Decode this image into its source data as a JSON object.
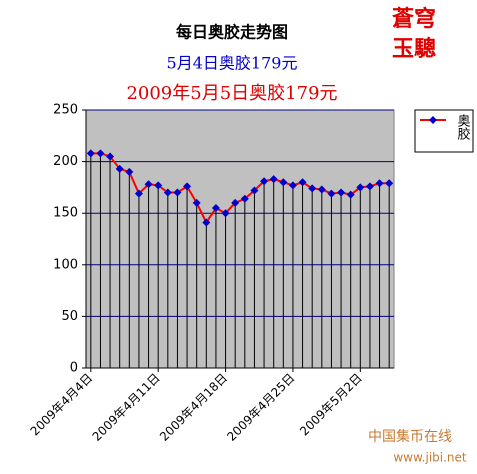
{
  "chart_data": {
    "type": "line",
    "title": "每日奥胶走势图",
    "subtitle": "5月4日奥胶179元",
    "subtitle2": "2009年5月5日奥胶179元",
    "categories": [
      "2009年4月4日",
      null,
      null,
      null,
      null,
      null,
      null,
      "2009年4月11日",
      null,
      null,
      null,
      null,
      null,
      null,
      "2009年4月18日",
      null,
      null,
      null,
      null,
      null,
      null,
      "2009年4月25日",
      null,
      null,
      null,
      null,
      null,
      null,
      "2009年5月2日",
      null,
      null,
      null
    ],
    "series": [
      {
        "name": "奥胶",
        "color": "#ff0000",
        "marker_color": "#0000cc",
        "values": [
          208,
          208,
          205,
          193,
          190,
          169,
          178,
          177,
          170,
          170,
          176,
          160,
          141,
          155,
          150,
          160,
          164,
          172,
          181,
          183,
          180,
          177,
          180,
          174,
          173,
          169,
          170,
          168,
          175,
          176,
          179,
          179
        ]
      }
    ],
    "ylim": [
      0,
      250
    ],
    "yticks": [
      0,
      50,
      100,
      150,
      200,
      250
    ],
    "grid": true,
    "plot_background": "#c0c0c0",
    "grid_color": "#000080",
    "legend": "right"
  },
  "stamp": {
    "line1": "蒼穹",
    "line2": "玉驄"
  },
  "watermark": {
    "name": "中国集币在线",
    "url": "www.jibi.net"
  }
}
